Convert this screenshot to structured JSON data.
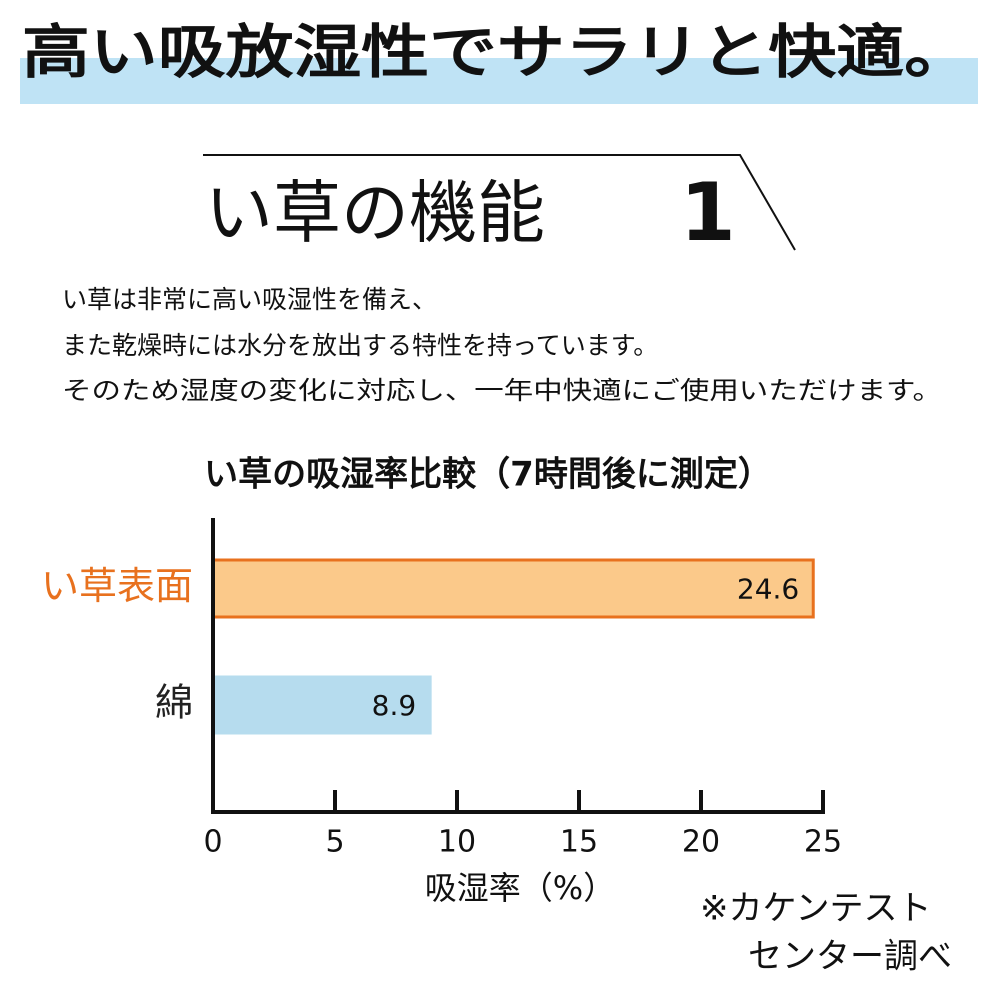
{
  "header": {
    "title": "高い吸放湿性でサラリと快適。"
  },
  "section": {
    "title": "い草の機能",
    "number": "1"
  },
  "body": {
    "lines": [
      "い草は非常に高い吸湿性を備え、",
      "また乾燥時には水分を放出する特性を持っています。",
      "そのため湿度の変化に対応し、一年中快適にご使用いただけます。"
    ]
  },
  "chart_data": {
    "type": "barh",
    "title": "い草の吸湿率比較（7時間後に測定）",
    "categories": [
      "い草表面",
      "綿"
    ],
    "values": [
      24.6,
      8.9
    ],
    "colors": [
      "#fbc98a",
      "#b6dcee"
    ],
    "edgecolors": [
      "#e8711e",
      "#b6dcee"
    ],
    "label_colors": [
      "#e8711e",
      "#222222"
    ],
    "xlim": [
      0,
      25
    ],
    "xticks": [
      0,
      5,
      10,
      15,
      20,
      25
    ],
    "xlabel": "吸湿率（%）",
    "note": [
      "※カケンテスト",
      "センター調べ"
    ]
  }
}
